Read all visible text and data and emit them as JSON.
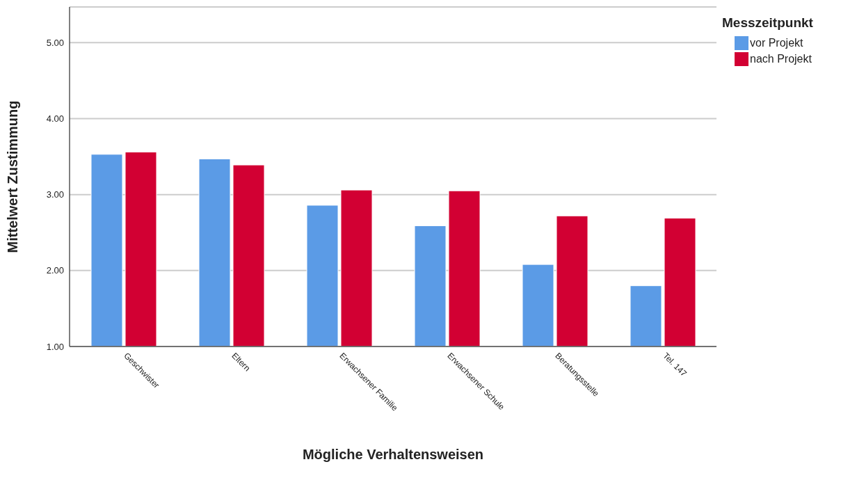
{
  "chart_data": {
    "type": "bar",
    "xlabel": "Mögliche Verhaltensweisen",
    "ylabel": "Mittelwert Zustimmung",
    "legend_title": "Messzeitpunkt",
    "categories": [
      "Geschwister",
      "Eltern",
      "Erwachsener Familie",
      "Erwachsener Schule",
      "Beratungsstelle",
      "Tel. 147"
    ],
    "series": [
      {
        "name": "vor Projekt",
        "color": "#5b9be6",
        "values": [
          3.53,
          3.47,
          2.86,
          2.59,
          2.08,
          1.8
        ]
      },
      {
        "name": "nach Projekt",
        "color": "#d20033",
        "values": [
          3.56,
          3.39,
          3.06,
          3.05,
          2.72,
          2.69
        ]
      }
    ],
    "ylim": [
      1,
      5.47
    ],
    "yticks": [
      {
        "value": 1,
        "label": "1.00"
      },
      {
        "value": 2,
        "label": "2.00"
      },
      {
        "value": 3,
        "label": "3.00"
      },
      {
        "value": 4,
        "label": "4.00"
      },
      {
        "value": 5,
        "label": "5.00"
      }
    ],
    "grid": "y",
    "legend": "top right"
  }
}
